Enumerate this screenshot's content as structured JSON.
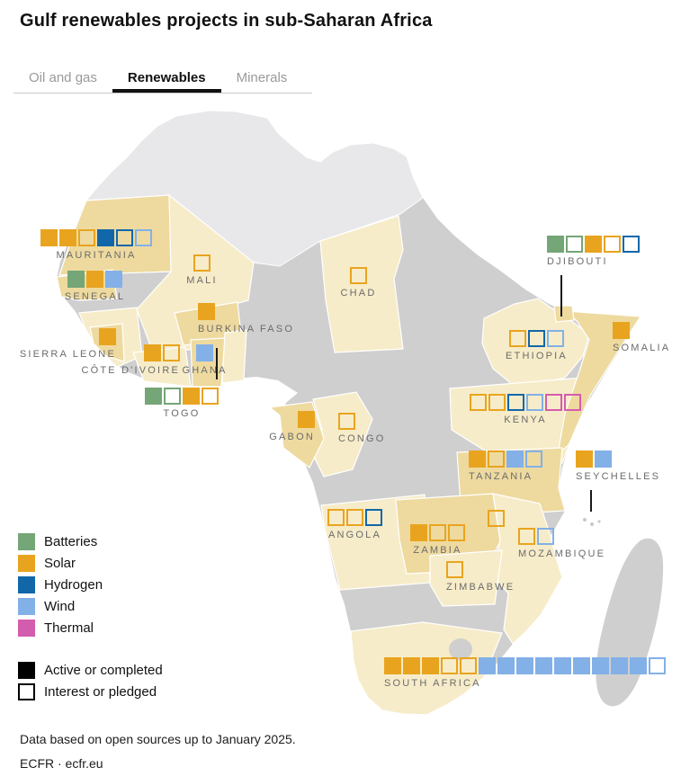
{
  "title": "Gulf renewables projects in sub-Saharan Africa",
  "tabs": [
    {
      "label": "Oil and gas",
      "active": false
    },
    {
      "label": "Renewables",
      "active": true
    },
    {
      "label": "Minerals",
      "active": false
    }
  ],
  "colors": {
    "batteries": "#74A677",
    "solar": "#E9A41F",
    "hydrogen": "#1267A9",
    "wind": "#83B0E7",
    "thermal": "#D45CAE",
    "map_base": "#CFCFCF",
    "map_north": "#E8E8EA",
    "country_light": "#F7ECC9",
    "country_dark": "#EEDA9F"
  },
  "legend": {
    "categories": [
      {
        "key": "batteries",
        "label": "Batteries"
      },
      {
        "key": "solar",
        "label": "Solar"
      },
      {
        "key": "hydrogen",
        "label": "Hydrogen"
      },
      {
        "key": "wind",
        "label": "Wind"
      },
      {
        "key": "thermal",
        "label": "Thermal"
      }
    ],
    "statuses": [
      {
        "key": "active",
        "label": "Active or completed"
      },
      {
        "key": "pledged",
        "label": "Interest or pledged"
      }
    ]
  },
  "map": {
    "countries": {
      "mauritania": {
        "label": "MAURITANIA",
        "squares": [
          {
            "type": "solar",
            "status": "active"
          },
          {
            "type": "solar",
            "status": "active"
          },
          {
            "type": "solar",
            "status": "pledged"
          },
          {
            "type": "hydrogen",
            "status": "active"
          },
          {
            "type": "hydrogen",
            "status": "pledged"
          },
          {
            "type": "wind",
            "status": "pledged"
          }
        ]
      },
      "senegal": {
        "label": "SENEGAL",
        "squares": [
          {
            "type": "batteries",
            "status": "active"
          },
          {
            "type": "solar",
            "status": "active"
          },
          {
            "type": "wind",
            "status": "active"
          }
        ]
      },
      "mali": {
        "label": "MALI",
        "squares": [
          {
            "type": "solar",
            "status": "pledged"
          }
        ]
      },
      "chad": {
        "label": "CHAD",
        "squares": [
          {
            "type": "solar",
            "status": "pledged"
          }
        ]
      },
      "sierra_leone": {
        "label": "SIERRA LEONE",
        "squares": [
          {
            "type": "solar",
            "status": "active"
          }
        ]
      },
      "cote_divoire": {
        "label": "CÔTE D'IVOIRE",
        "squares": [
          {
            "type": "solar",
            "status": "active"
          },
          {
            "type": "solar",
            "status": "pledged"
          }
        ]
      },
      "burkina_faso": {
        "label": "BURKINA FASO",
        "squares": [
          {
            "type": "solar",
            "status": "active"
          }
        ]
      },
      "ghana": {
        "label": "GHANA",
        "squares": [
          {
            "type": "wind",
            "status": "active"
          }
        ]
      },
      "togo": {
        "label": "TOGO",
        "squares": [
          {
            "type": "batteries",
            "status": "active"
          },
          {
            "type": "batteries",
            "status": "pledged"
          },
          {
            "type": "solar",
            "status": "active"
          },
          {
            "type": "solar",
            "status": "pledged"
          }
        ]
      },
      "djibouti": {
        "label": "DJIBOUTI",
        "squares": [
          {
            "type": "batteries",
            "status": "active"
          },
          {
            "type": "batteries",
            "status": "pledged"
          },
          {
            "type": "solar",
            "status": "active"
          },
          {
            "type": "solar",
            "status": "pledged"
          },
          {
            "type": "hydrogen",
            "status": "pledged"
          }
        ]
      },
      "ethiopia": {
        "label": "ETHIOPIA",
        "squares": [
          {
            "type": "solar",
            "status": "pledged"
          },
          {
            "type": "hydrogen",
            "status": "pledged"
          },
          {
            "type": "wind",
            "status": "pledged"
          }
        ]
      },
      "somalia": {
        "label": "SOMALIA",
        "squares": [
          {
            "type": "solar",
            "status": "active"
          }
        ]
      },
      "kenya": {
        "label": "KENYA",
        "squares": [
          {
            "type": "solar",
            "status": "pledged"
          },
          {
            "type": "solar",
            "status": "pledged"
          },
          {
            "type": "hydrogen",
            "status": "pledged"
          },
          {
            "type": "wind",
            "status": "pledged"
          },
          {
            "type": "thermal",
            "status": "pledged"
          },
          {
            "type": "thermal",
            "status": "pledged"
          }
        ]
      },
      "tanzania": {
        "label": "TANZANIA",
        "squares": [
          {
            "type": "solar",
            "status": "active"
          },
          {
            "type": "solar",
            "status": "pledged"
          },
          {
            "type": "wind",
            "status": "active"
          },
          {
            "type": "wind",
            "status": "pledged"
          }
        ]
      },
      "seychelles": {
        "label": "SEYCHELLES",
        "squares": [
          {
            "type": "solar",
            "status": "active"
          },
          {
            "type": "wind",
            "status": "active"
          }
        ]
      },
      "gabon": {
        "label": "GABON",
        "squares": [
          {
            "type": "solar",
            "status": "active"
          }
        ]
      },
      "congo": {
        "label": "CONGO",
        "squares": [
          {
            "type": "solar",
            "status": "pledged"
          }
        ]
      },
      "angola": {
        "label": "ANGOLA",
        "squares": [
          {
            "type": "solar",
            "status": "pledged"
          },
          {
            "type": "solar",
            "status": "pledged"
          },
          {
            "type": "hydrogen",
            "status": "pledged"
          }
        ]
      },
      "zambia": {
        "label": "ZAMBIA",
        "squares": [
          {
            "type": "solar",
            "status": "active"
          },
          {
            "type": "solar",
            "status": "pledged"
          },
          {
            "type": "solar",
            "status": "pledged"
          }
        ]
      },
      "malawi": {
        "label": "",
        "squares": [
          {
            "type": "solar",
            "status": "pledged"
          }
        ]
      },
      "mozambique": {
        "label": "MOZAMBIQUE",
        "squares": [
          {
            "type": "solar",
            "status": "pledged"
          },
          {
            "type": "wind",
            "status": "pledged"
          }
        ]
      },
      "zimbabwe": {
        "label": "ZIMBABWE",
        "squares": [
          {
            "type": "solar",
            "status": "pledged"
          }
        ]
      },
      "south_africa": {
        "label": "SOUTH AFRICA",
        "squares": [
          {
            "type": "solar",
            "status": "active"
          },
          {
            "type": "solar",
            "status": "active"
          },
          {
            "type": "solar",
            "status": "active"
          },
          {
            "type": "solar",
            "status": "pledged"
          },
          {
            "type": "solar",
            "status": "pledged"
          },
          {
            "type": "wind",
            "status": "active"
          },
          {
            "type": "wind",
            "status": "active"
          },
          {
            "type": "wind",
            "status": "active"
          },
          {
            "type": "wind",
            "status": "active"
          },
          {
            "type": "wind",
            "status": "active"
          },
          {
            "type": "wind",
            "status": "active"
          },
          {
            "type": "wind",
            "status": "active"
          },
          {
            "type": "wind",
            "status": "active"
          },
          {
            "type": "wind",
            "status": "active"
          },
          {
            "type": "wind",
            "status": "pledged"
          }
        ]
      }
    }
  },
  "footer": {
    "source_note": "Data based on open sources up to January 2025.",
    "credit": "ECFR · ecfr.eu"
  }
}
